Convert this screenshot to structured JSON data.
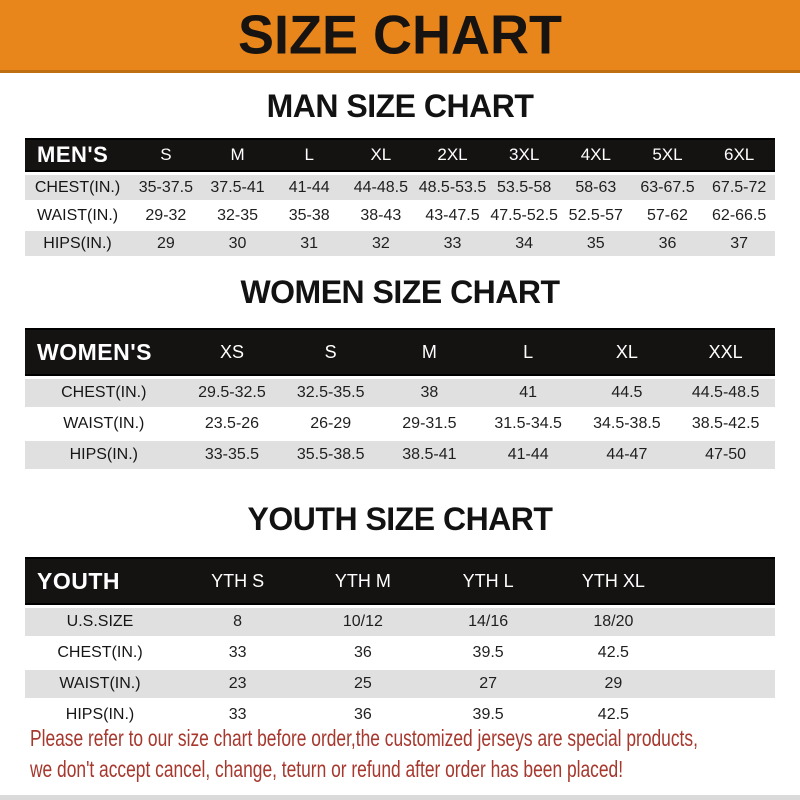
{
  "banner": {
    "title": "SIZE CHART"
  },
  "colors": {
    "banner_orange": "#E8861C",
    "header_bar_black": "#151212",
    "stripe_gray": "#E0E0E0",
    "note_red": "#A6382E"
  },
  "sections": [
    {
      "title": "MAN SIZE CHART",
      "header_label": "MEN'S",
      "columns": [
        "S",
        "M",
        "L",
        "XL",
        "2XL",
        "3XL",
        "4XL",
        "5XL",
        "6XL"
      ],
      "rows": [
        {
          "label": "CHEST(IN.)",
          "values": [
            "35-37.5",
            "37.5-41",
            "41-44",
            "44-48.5",
            "48.5-53.5",
            "53.5-58",
            "58-63",
            "63-67.5",
            "67.5-72"
          ]
        },
        {
          "label": "WAIST(IN.)",
          "values": [
            "29-32",
            "32-35",
            "35-38",
            "38-43",
            "43-47.5",
            "47.5-52.5",
            "52.5-57",
            "57-62",
            "62-66.5"
          ]
        },
        {
          "label": "HIPS(IN.)",
          "values": [
            "29",
            "30",
            "31",
            "32",
            "33",
            "34",
            "35",
            "36",
            "37"
          ]
        }
      ]
    },
    {
      "title": "WOMEN SIZE CHART",
      "header_label": "WOMEN'S",
      "columns": [
        "XS",
        "S",
        "M",
        "L",
        "XL",
        "XXL"
      ],
      "rows": [
        {
          "label": "CHEST(IN.)",
          "values": [
            "29.5-32.5",
            "32.5-35.5",
            "38",
            "41",
            "44.5",
            "44.5-48.5"
          ]
        },
        {
          "label": "WAIST(IN.)",
          "values": [
            "23.5-26",
            "26-29",
            "29-31.5",
            "31.5-34.5",
            "34.5-38.5",
            "38.5-42.5"
          ]
        },
        {
          "label": "HIPS(IN.)",
          "values": [
            "33-35.5",
            "35.5-38.5",
            "38.5-41",
            "41-44",
            "44-47",
            "47-50"
          ]
        }
      ]
    },
    {
      "title": "YOUTH SIZE CHART",
      "header_label": "YOUTH",
      "columns": [
        "YTH S",
        "YTH M",
        "YTH L",
        "YTH XL"
      ],
      "rows": [
        {
          "label": "U.S.SIZE",
          "values": [
            "8",
            "10/12",
            "14/16",
            "18/20"
          ]
        },
        {
          "label": "CHEST(IN.)",
          "values": [
            "33",
            "36",
            "39.5",
            "42.5"
          ]
        },
        {
          "label": "WAIST(IN.)",
          "values": [
            "23",
            "25",
            "27",
            "29"
          ]
        },
        {
          "label": "HIPS(IN.)",
          "values": [
            "33",
            "36",
            "39.5",
            "42.5"
          ]
        }
      ]
    }
  ],
  "disclaimer": {
    "line1": "Please refer to our size chart before order,the customized jerseys are special products,",
    "line2": "we don't accept cancel, change, teturn or refund after order has been placed!"
  }
}
